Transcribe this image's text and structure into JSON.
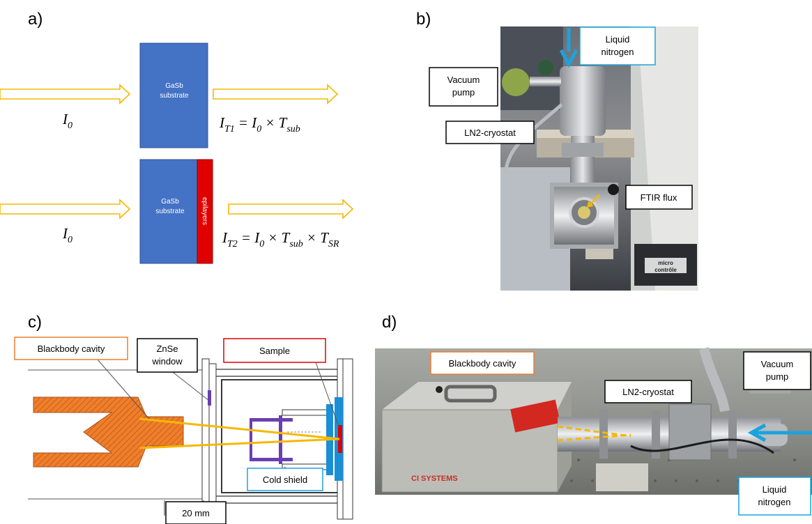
{
  "panels": {
    "a": {
      "label": "a)",
      "substrate_label_line1": "GaSb",
      "substrate_label_line2": "substrate",
      "epi_label": "epilayers",
      "input_symbol": "I",
      "input_sub": "0",
      "eq1": {
        "lhs": "I",
        "lhs_sub": "T1",
        "rest": "= I",
        "rest_sub": "0",
        "times1": "× T",
        "times1_sub": "sub"
      },
      "eq2": {
        "lhs": "I",
        "lhs_sub": "T2",
        "rest": "= I",
        "rest_sub": "0",
        "times1": "× T",
        "times1_sub": "sub",
        "times2": "× T",
        "times2_sub": "SR"
      }
    },
    "b": {
      "label": "b)",
      "callouts": {
        "liquid_nitrogen_1": "Liquid",
        "liquid_nitrogen_2": "nitrogen",
        "vacuum_pump_1": "Vacuum",
        "vacuum_pump_2": "pump",
        "cryostat": "LN2-cryostat",
        "ftir": "FTIR flux"
      },
      "brand_1": "micro",
      "brand_2": "contrôle"
    },
    "c": {
      "label": "c)",
      "callouts": {
        "blackbody": "Blackbody cavity",
        "znse_1": "ZnSe",
        "znse_2": "window",
        "sample": "Sample",
        "cold_shield": "Cold shield",
        "scale": "20 mm"
      }
    },
    "d": {
      "label": "d)",
      "callouts": {
        "blackbody": "Blackbody cavity",
        "cryostat": "LN2-cryostat",
        "vacuum_pump_1": "Vacuum",
        "vacuum_pump_2": "pump",
        "liquid_nitrogen_1": "Liquid",
        "liquid_nitrogen_2": "nitrogen"
      },
      "brand": "CI SYSTEMS"
    }
  },
  "colors": {
    "substrate": "#4472C4",
    "epilayer": "#E00000",
    "arrow_outline": "#F5B800",
    "callout_black": "#000000",
    "callout_orange": "#ED7D31",
    "callout_blue": "#1CA3DC",
    "callout_red": "#E00000",
    "blackbody_fill": "#F07E2A",
    "beam": "#F5B800",
    "lavender": "#6A3FB0",
    "shield_blue": "#1A8FD6"
  }
}
